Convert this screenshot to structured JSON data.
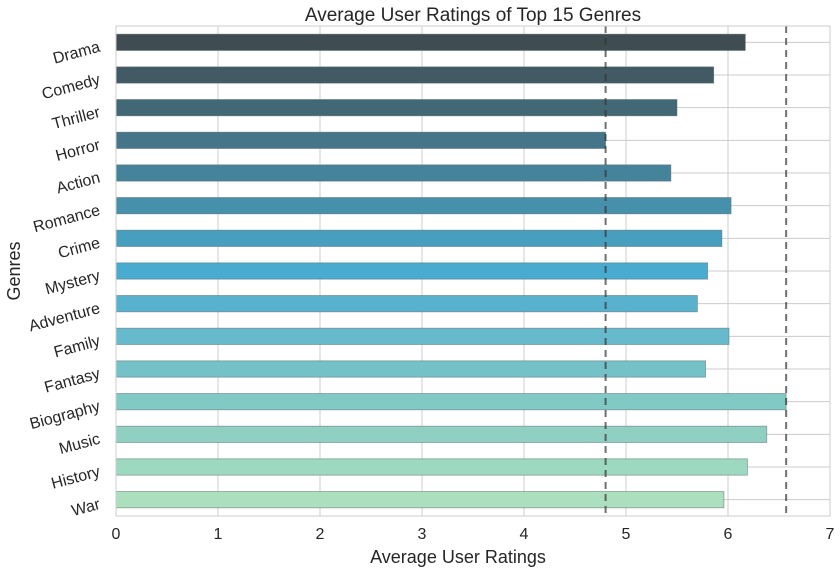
{
  "chart_data": {
    "type": "bar",
    "orientation": "horizontal",
    "title": "Average User Ratings of Top 15 Genres",
    "xlabel": "Average User Ratings",
    "ylabel": "Genres",
    "categories": [
      "Drama",
      "Comedy",
      "Thriller",
      "Horror",
      "Action",
      "Romance",
      "Crime",
      "Mystery",
      "Adventure",
      "Family",
      "Fantasy",
      "Biography",
      "Music",
      "History",
      "War"
    ],
    "values": [
      6.17,
      5.86,
      5.5,
      4.8,
      5.44,
      6.03,
      5.94,
      5.8,
      5.7,
      6.01,
      5.78,
      6.57,
      6.38,
      6.19,
      5.96
    ],
    "xlim": [
      0,
      7
    ],
    "xticks": [
      0,
      1,
      2,
      3,
      4,
      5,
      6,
      7
    ],
    "reference_lines": [
      4.8,
      6.57
    ],
    "grid": true,
    "palette_start": "#3f4d52",
    "palette_mid": "#4aabd0",
    "palette_end": "#abdfbd"
  }
}
